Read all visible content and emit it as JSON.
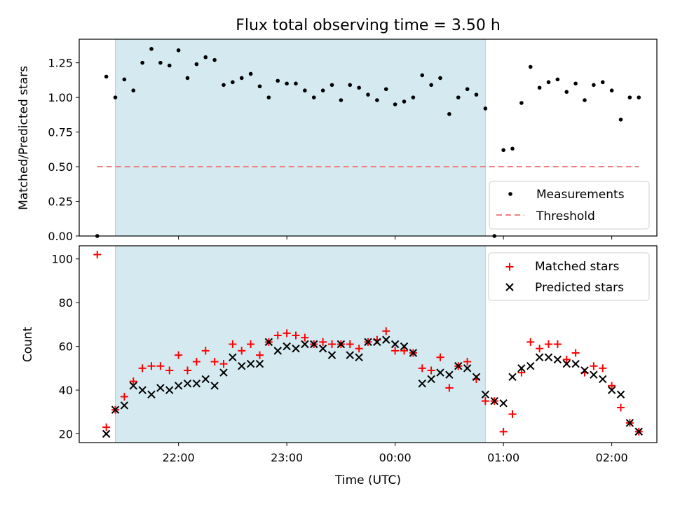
{
  "chart_data": [
    {
      "type": "scatter",
      "title": "Flux total observing time = 3.50 h",
      "ylabel": "Matched/Predicted stars",
      "ylim": [
        0,
        1.42
      ],
      "yticks": [
        "0.00",
        "0.25",
        "0.50",
        "0.75",
        "1.00",
        "1.25"
      ],
      "shaded_span": [
        "21:25",
        "00:50"
      ],
      "shade_color": "#d4eaf0",
      "threshold": {
        "name": "Threshold",
        "value": 0.5,
        "from": "21:15",
        "to": "02:15",
        "color": "#f08080"
      },
      "series": [
        {
          "name": "Measurements",
          "color": "#000000",
          "points": [
            [
              "21:15",
              0.0
            ],
            [
              "21:20",
              1.15
            ],
            [
              "21:25",
              1.0
            ],
            [
              "21:30",
              1.13
            ],
            [
              "21:35",
              1.05
            ],
            [
              "21:40",
              1.25
            ],
            [
              "21:45",
              1.35
            ],
            [
              "21:50",
              1.25
            ],
            [
              "21:55",
              1.23
            ],
            [
              "22:00",
              1.34
            ],
            [
              "22:05",
              1.14
            ],
            [
              "22:10",
              1.24
            ],
            [
              "22:15",
              1.29
            ],
            [
              "22:20",
              1.27
            ],
            [
              "22:25",
              1.09
            ],
            [
              "22:30",
              1.11
            ],
            [
              "22:35",
              1.14
            ],
            [
              "22:40",
              1.17
            ],
            [
              "22:45",
              1.08
            ],
            [
              "22:50",
              1.0
            ],
            [
              "22:55",
              1.12
            ],
            [
              "23:00",
              1.1
            ],
            [
              "23:05",
              1.1
            ],
            [
              "23:10",
              1.05
            ],
            [
              "23:15",
              1.0
            ],
            [
              "23:20",
              1.05
            ],
            [
              "23:25",
              1.09
            ],
            [
              "23:30",
              0.98
            ],
            [
              "23:35",
              1.09
            ],
            [
              "23:40",
              1.07
            ],
            [
              "23:45",
              1.02
            ],
            [
              "23:50",
              0.98
            ],
            [
              "23:55",
              1.06
            ],
            [
              "00:00",
              0.95
            ],
            [
              "00:05",
              0.97
            ],
            [
              "00:10",
              1.0
            ],
            [
              "00:15",
              1.16
            ],
            [
              "00:20",
              1.09
            ],
            [
              "00:25",
              1.14
            ],
            [
              "00:30",
              0.88
            ],
            [
              "00:35",
              1.0
            ],
            [
              "00:40",
              1.06
            ],
            [
              "00:45",
              1.02
            ],
            [
              "00:50",
              0.92
            ],
            [
              "00:55",
              0.0
            ],
            [
              "01:00",
              0.62
            ],
            [
              "01:05",
              0.63
            ],
            [
              "01:10",
              0.96
            ],
            [
              "01:15",
              1.22
            ],
            [
              "01:20",
              1.07
            ],
            [
              "01:25",
              1.11
            ],
            [
              "01:30",
              1.13
            ],
            [
              "01:35",
              1.04
            ],
            [
              "01:40",
              1.1
            ],
            [
              "01:45",
              0.98
            ],
            [
              "01:50",
              1.09
            ],
            [
              "01:55",
              1.11
            ],
            [
              "02:00",
              1.05
            ],
            [
              "02:05",
              0.84
            ],
            [
              "02:10",
              1.0
            ],
            [
              "02:15",
              1.0
            ]
          ]
        }
      ],
      "legend": {
        "placement": "lower-right",
        "entries": [
          "Measurements",
          "Threshold"
        ]
      }
    },
    {
      "type": "scatter",
      "xlabel": "Time (UTC)",
      "ylabel": "Count",
      "ylim": [
        16,
        106
      ],
      "xlim": [
        "21:05",
        "02:25"
      ],
      "yticks": [
        "20",
        "40",
        "60",
        "80",
        "100"
      ],
      "xticks": [
        "22:00",
        "23:00",
        "00:00",
        "01:00",
        "02:00"
      ],
      "shaded_span": [
        "21:25",
        "00:50"
      ],
      "series": [
        {
          "name": "Matched stars",
          "marker": "+",
          "color": "#ff0000",
          "points": [
            [
              "21:15",
              102
            ],
            [
              "21:20",
              23
            ],
            [
              "21:25",
              31
            ],
            [
              "21:30",
              37
            ],
            [
              "21:35",
              44
            ],
            [
              "21:40",
              50
            ],
            [
              "21:45",
              51
            ],
            [
              "21:50",
              51
            ],
            [
              "21:55",
              49
            ],
            [
              "22:00",
              56
            ],
            [
              "22:05",
              49
            ],
            [
              "22:10",
              53
            ],
            [
              "22:15",
              58
            ],
            [
              "22:20",
              53
            ],
            [
              "22:25",
              52
            ],
            [
              "22:30",
              61
            ],
            [
              "22:35",
              58
            ],
            [
              "22:40",
              61
            ],
            [
              "22:45",
              56
            ],
            [
              "22:50",
              62
            ],
            [
              "22:55",
              65
            ],
            [
              "23:00",
              66
            ],
            [
              "23:05",
              65
            ],
            [
              "23:10",
              64
            ],
            [
              "23:15",
              61
            ],
            [
              "23:20",
              62
            ],
            [
              "23:25",
              61
            ],
            [
              "23:30",
              61
            ],
            [
              "23:35",
              61
            ],
            [
              "23:40",
              59
            ],
            [
              "23:45",
              62
            ],
            [
              "23:50",
              63
            ],
            [
              "23:55",
              67
            ],
            [
              "00:00",
              58
            ],
            [
              "00:05",
              58
            ],
            [
              "00:10",
              57
            ],
            [
              "00:15",
              50
            ],
            [
              "00:20",
              49
            ],
            [
              "00:25",
              55
            ],
            [
              "00:30",
              41
            ],
            [
              "00:35",
              51
            ],
            [
              "00:40",
              53
            ],
            [
              "00:45",
              45
            ],
            [
              "00:50",
              35
            ],
            [
              "00:55",
              35
            ],
            [
              "01:00",
              21
            ],
            [
              "01:05",
              29
            ],
            [
              "01:10",
              48
            ],
            [
              "01:15",
              62
            ],
            [
              "01:20",
              59
            ],
            [
              "01:25",
              61
            ],
            [
              "01:30",
              61
            ],
            [
              "01:35",
              54
            ],
            [
              "01:40",
              57
            ],
            [
              "01:45",
              48
            ],
            [
              "01:50",
              51
            ],
            [
              "01:55",
              50
            ],
            [
              "02:00",
              42
            ],
            [
              "02:05",
              32
            ],
            [
              "02:10",
              25
            ],
            [
              "02:15",
              21
            ]
          ]
        },
        {
          "name": "Predicted stars",
          "marker": "x",
          "color": "#000000",
          "points": [
            [
              "21:20",
              20
            ],
            [
              "21:25",
              31
            ],
            [
              "21:30",
              33
            ],
            [
              "21:35",
              42
            ],
            [
              "21:40",
              40
            ],
            [
              "21:45",
              38
            ],
            [
              "21:50",
              41
            ],
            [
              "21:55",
              40
            ],
            [
              "22:00",
              42
            ],
            [
              "22:05",
              43
            ],
            [
              "22:10",
              43
            ],
            [
              "22:15",
              45
            ],
            [
              "22:20",
              42
            ],
            [
              "22:25",
              48
            ],
            [
              "22:30",
              55
            ],
            [
              "22:35",
              51
            ],
            [
              "22:40",
              52
            ],
            [
              "22:45",
              52
            ],
            [
              "22:50",
              62
            ],
            [
              "22:55",
              58
            ],
            [
              "23:00",
              60
            ],
            [
              "23:05",
              59
            ],
            [
              "23:10",
              61
            ],
            [
              "23:15",
              61
            ],
            [
              "23:20",
              59
            ],
            [
              "23:25",
              56
            ],
            [
              "23:30",
              61
            ],
            [
              "23:35",
              56
            ],
            [
              "23:40",
              55
            ],
            [
              "23:45",
              62
            ],
            [
              "23:50",
              62
            ],
            [
              "23:55",
              63
            ],
            [
              "00:00",
              61
            ],
            [
              "00:05",
              60
            ],
            [
              "00:10",
              57
            ],
            [
              "00:15",
              43
            ],
            [
              "00:20",
              45
            ],
            [
              "00:25",
              48
            ],
            [
              "00:30",
              47
            ],
            [
              "00:35",
              51
            ],
            [
              "00:40",
              50
            ],
            [
              "00:45",
              46
            ],
            [
              "00:50",
              38
            ],
            [
              "00:55",
              35
            ],
            [
              "01:00",
              34
            ],
            [
              "01:05",
              46
            ],
            [
              "01:10",
              50
            ],
            [
              "01:15",
              51
            ],
            [
              "01:20",
              55
            ],
            [
              "01:25",
              55
            ],
            [
              "01:30",
              54
            ],
            [
              "01:35",
              52
            ],
            [
              "01:40",
              52
            ],
            [
              "01:45",
              49
            ],
            [
              "01:50",
              47
            ],
            [
              "01:55",
              45
            ],
            [
              "02:00",
              40
            ],
            [
              "02:05",
              38
            ],
            [
              "02:10",
              25
            ],
            [
              "02:15",
              21
            ]
          ]
        }
      ],
      "legend": {
        "placement": "upper-right",
        "entries": [
          "Matched stars",
          "Predicted stars"
        ]
      }
    }
  ]
}
